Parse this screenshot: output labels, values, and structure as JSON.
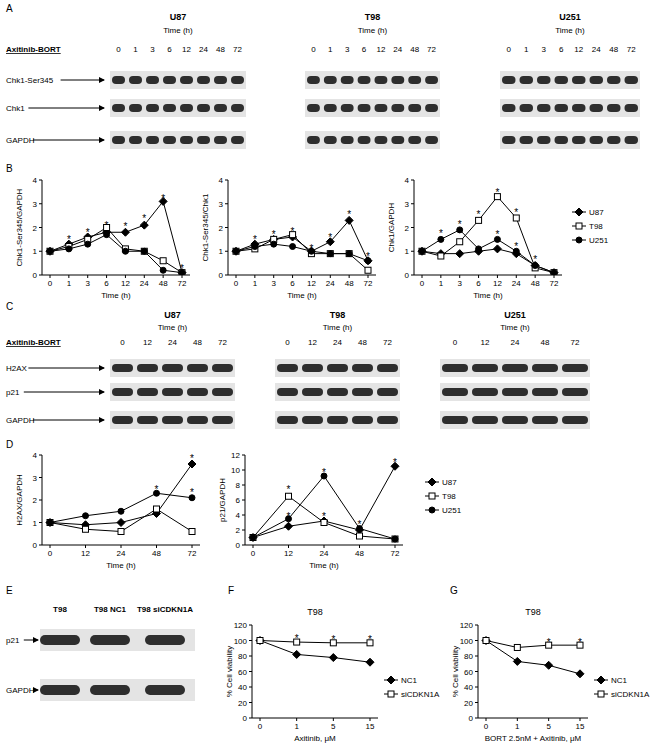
{
  "panel_labels": [
    "A",
    "B",
    "C",
    "D",
    "E",
    "F",
    "G"
  ],
  "blots": [
    {
      "treatment": "Axitinib-BORT",
      "time_label": "Time (h)",
      "groups": [
        "U87",
        "T98",
        "U251"
      ],
      "times": [
        0,
        1,
        3,
        6,
        12,
        24,
        48,
        72
      ],
      "rows": [
        "Chk1-Ser345",
        "Chk1",
        "GAPDH"
      ]
    },
    {
      "treatment": "Axitinib-BORT",
      "time_label": "Time (h)",
      "groups": [
        "U87",
        "T98",
        "U251"
      ],
      "times": [
        0,
        12,
        24,
        48,
        72
      ],
      "rows": [
        "H2AX",
        "p21",
        "GAPDH"
      ]
    },
    {
      "lanes": [
        "T98",
        "T98 NC1",
        "T98 siCDKN1A"
      ],
      "rows": [
        "p21",
        "GAPDH"
      ]
    }
  ],
  "chart_data": [
    {
      "type": "line",
      "categories": [
        0,
        1,
        3,
        6,
        12,
        24,
        48,
        72
      ],
      "x_label": "Time (h)",
      "y_label": "Chk1-Ser345/GAPDH",
      "ylim": [
        0,
        4
      ],
      "yticks": [
        0,
        1,
        2,
        3,
        4
      ],
      "series": [
        {
          "color": "#000000",
          "marker": "diamond",
          "values": [
            1,
            1.3,
            1.6,
            1.8,
            1.8,
            2.1,
            3.1,
            0.1
          ]
        },
        {
          "color": "#000000",
          "marker": "open-square",
          "values": [
            1,
            1.2,
            1.5,
            2.0,
            1.1,
            1.0,
            0.6,
            0.1
          ]
        },
        {
          "color": "#000000",
          "marker": "circle",
          "values": [
            1,
            1.1,
            1.3,
            1.7,
            1.0,
            1.0,
            0.2,
            0.1
          ]
        }
      ],
      "annotations": [
        {
          "text": "*",
          "x": 1,
          "y": 1.55
        },
        {
          "text": "*",
          "x": 3,
          "y": 1.85
        },
        {
          "text": "*",
          "x": 6,
          "y": 2.15
        },
        {
          "text": "*",
          "x": 12,
          "y": 2.1
        },
        {
          "text": "*",
          "x": 24,
          "y": 2.45
        },
        {
          "text": "*",
          "x": 48,
          "y": 3.3
        },
        {
          "text": "*",
          "x": 72,
          "y": 0.35
        }
      ]
    },
    {
      "type": "line",
      "categories": [
        0,
        1,
        3,
        6,
        12,
        24,
        48,
        72
      ],
      "x_label": "Time (h)",
      "y_label": "Chk1-Ser345/Chk1",
      "ylim": [
        0,
        4
      ],
      "yticks": [
        0,
        1,
        2,
        3,
        4
      ],
      "series": [
        {
          "color": "#000000",
          "marker": "diamond",
          "values": [
            1,
            1.3,
            1.5,
            1.6,
            1.0,
            1.4,
            2.3,
            0.6
          ]
        },
        {
          "color": "#000000",
          "marker": "open-square",
          "values": [
            1,
            1.1,
            1.5,
            1.7,
            0.9,
            0.9,
            0.9,
            0.2
          ]
        },
        {
          "color": "#000000",
          "marker": "circle",
          "values": [
            1,
            1.2,
            1.3,
            1.2,
            1.0,
            0.9,
            0.9,
            0.6
          ]
        }
      ],
      "annotations": [
        {
          "text": "*",
          "x": 1,
          "y": 1.55
        },
        {
          "text": "*",
          "x": 3,
          "y": 1.75
        },
        {
          "text": "*",
          "x": 6,
          "y": 1.9
        },
        {
          "text": "*",
          "x": 12,
          "y": 1.2
        },
        {
          "text": "*",
          "x": 24,
          "y": 1.65
        },
        {
          "text": "*",
          "x": 48,
          "y": 2.6
        },
        {
          "text": "*",
          "x": 72,
          "y": 0.85
        }
      ]
    },
    {
      "type": "line",
      "categories": [
        0,
        1,
        3,
        6,
        12,
        24,
        48,
        72
      ],
      "x_label": "Time (h)",
      "y_label": "Chk1/GAPDH",
      "ylim": [
        0,
        4
      ],
      "yticks": [
        0,
        1,
        2,
        3,
        4
      ],
      "legend": "right",
      "series": [
        {
          "name": "U87",
          "color": "#000000",
          "marker": "diamond",
          "values": [
            1,
            0.9,
            0.9,
            1.0,
            1.1,
            0.9,
            0.4,
            0.1
          ]
        },
        {
          "name": "T98",
          "color": "#000000",
          "marker": "open-square",
          "values": [
            1,
            0.8,
            1.4,
            2.3,
            3.3,
            2.4,
            0.3,
            0.1
          ]
        },
        {
          "name": "U251",
          "color": "#000000",
          "marker": "circle",
          "values": [
            1,
            1.5,
            1.9,
            1.1,
            1.5,
            1.0,
            0.4,
            0.1
          ]
        }
      ],
      "annotations": [
        {
          "text": "*",
          "x": 1,
          "y": 1.8
        },
        {
          "text": "*",
          "x": 3,
          "y": 2.2
        },
        {
          "text": "*",
          "x": 6,
          "y": 2.6
        },
        {
          "text": "*",
          "x": 12,
          "y": 3.55
        },
        {
          "text": "*",
          "x": 12,
          "y": 1.75
        },
        {
          "text": "*",
          "x": 24,
          "y": 2.7
        },
        {
          "text": "*",
          "x": 24,
          "y": 1.25
        },
        {
          "text": "*",
          "x": 48,
          "y": 0.7
        }
      ]
    },
    {
      "type": "line",
      "categories": [
        0,
        12,
        24,
        48,
        72
      ],
      "x_label": "Time (h)",
      "y_label": "H2AX/GAPDH",
      "ylim": [
        0,
        4
      ],
      "yticks": [
        0,
        1,
        2,
        3,
        4
      ],
      "series": [
        {
          "color": "#000000",
          "marker": "diamond",
          "values": [
            1,
            0.9,
            1.0,
            1.4,
            3.6
          ]
        },
        {
          "color": "#000000",
          "marker": "open-square",
          "values": [
            1,
            0.7,
            0.6,
            1.6,
            0.6
          ]
        },
        {
          "color": "#000000",
          "marker": "circle",
          "values": [
            1,
            1.3,
            1.5,
            2.3,
            2.1
          ]
        }
      ],
      "annotations": [
        {
          "text": "*",
          "x": 48,
          "y": 2.55
        },
        {
          "text": "*",
          "x": 72,
          "y": 3.9
        },
        {
          "text": "*",
          "x": 72,
          "y": 2.4
        }
      ]
    },
    {
      "type": "line",
      "categories": [
        0,
        12,
        24,
        48,
        72
      ],
      "x_label": "Time (h)",
      "y_label": "p21/GAPDH",
      "ylim": [
        0,
        12
      ],
      "yticks": [
        0,
        2,
        4,
        6,
        8,
        10,
        12
      ],
      "legend": "right",
      "series": [
        {
          "name": "U87",
          "color": "#000000",
          "marker": "diamond",
          "values": [
            1,
            2.5,
            3.2,
            2.0,
            10.5
          ]
        },
        {
          "name": "T98",
          "color": "#000000",
          "marker": "open-square",
          "values": [
            1,
            6.5,
            3.0,
            1.2,
            0.8
          ]
        },
        {
          "name": "U251",
          "color": "#000000",
          "marker": "circle",
          "values": [
            1,
            3.5,
            9.2,
            2.2,
            0.8
          ]
        }
      ],
      "annotations": [
        {
          "text": "*",
          "x": 12,
          "y": 7.6
        },
        {
          "text": "*",
          "x": 12,
          "y": 4.0
        },
        {
          "text": "*",
          "x": 24,
          "y": 9.9
        },
        {
          "text": "*",
          "x": 24,
          "y": 4.0
        },
        {
          "text": "*",
          "x": 48,
          "y": 2.9
        },
        {
          "text": "*",
          "x": 72,
          "y": 11.2
        }
      ]
    },
    {
      "type": "line",
      "title": "T98",
      "categories": [
        0,
        1,
        5,
        15
      ],
      "x_label": "Axitinib, μM",
      "y_label": "% Cell viability",
      "ylim": [
        0,
        120
      ],
      "yticks": [
        0,
        20,
        40,
        60,
        80,
        100,
        120
      ],
      "legend": "right",
      "series": [
        {
          "name": "NC1",
          "color": "#000000",
          "marker": "diamond",
          "values": [
            100,
            82,
            78,
            72
          ]
        },
        {
          "name": "siCDKN1A",
          "color": "#000000",
          "marker": "open-square",
          "values": [
            100,
            98,
            97,
            97
          ]
        }
      ],
      "annotations": [
        {
          "text": "*",
          "x": 1,
          "y": 104
        },
        {
          "text": "*",
          "x": 5,
          "y": 103
        },
        {
          "text": "*",
          "x": 15,
          "y": 103
        }
      ]
    },
    {
      "type": "line",
      "title": "T98",
      "categories": [
        0,
        1,
        5,
        15
      ],
      "x_label": "BORT 2.5nM + Axitinib, μM",
      "y_label": "% Cell viability",
      "ylim": [
        0,
        120
      ],
      "yticks": [
        0,
        20,
        40,
        60,
        80,
        100,
        120
      ],
      "legend": "right",
      "series": [
        {
          "name": "NC1",
          "color": "#000000",
          "marker": "diamond",
          "values": [
            100,
            73,
            68,
            57
          ]
        },
        {
          "name": "siCDKN1A",
          "color": "#000000",
          "marker": "open-square",
          "values": [
            100,
            91,
            94,
            94
          ]
        }
      ],
      "annotations": [
        {
          "text": "*",
          "x": 5,
          "y": 100
        },
        {
          "text": "*",
          "x": 15,
          "y": 100
        }
      ]
    }
  ]
}
